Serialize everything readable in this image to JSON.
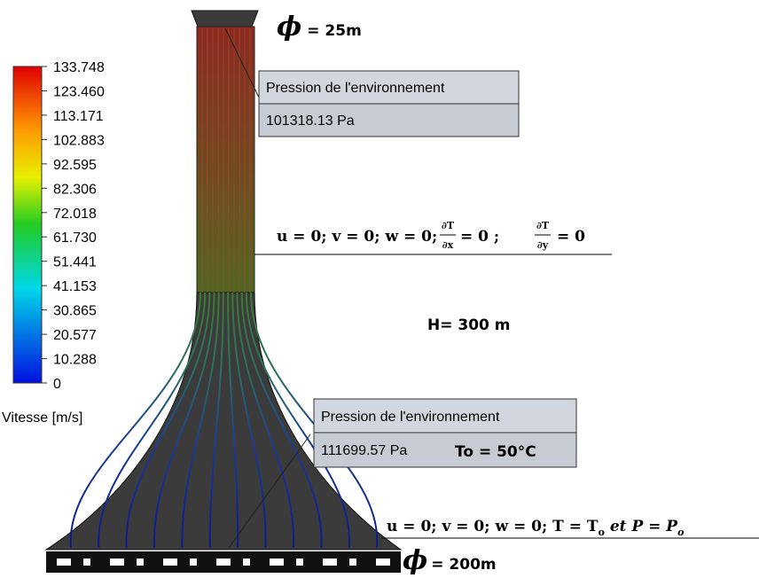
{
  "colorbar": {
    "ticks": [
      "133.748",
      "123.460",
      "113.171",
      "102.883",
      "92.595",
      "82.306",
      "72.018",
      "61.730",
      "51.441",
      "41.153",
      "30.865",
      "20.577",
      "10.288",
      "0"
    ],
    "label": "Vitesse [m/s]"
  },
  "top_diameter": {
    "symbol": "ϕ",
    "label": "= 25m"
  },
  "outlet_box": {
    "title": "Pression de l'environnement",
    "value": "101318.13 Pa"
  },
  "wall_condition": {
    "prefix": "u = 0; v = 0; w = 0;",
    "frac1": {
      "num": "∂T",
      "den": "∂x"
    },
    "mid": "= 0 ;",
    "frac2": {
      "num": "∂T",
      "den": "∂y"
    },
    "suffix": "= 0"
  },
  "height": "H= 300 m",
  "inlet_box": {
    "title": "Pression de l'environnement",
    "value": "111699.57 Pa"
  },
  "inlet_temperature": "To = 50°C",
  "inlet_condition": {
    "part1": "u = 0; v = 0; w = 0; T = T",
    "sub1": "o",
    "part2": " et ",
    "part3": "P = P",
    "sub2": "o"
  },
  "base_diameter": {
    "symbol": "ϕ",
    "label": "= 200m"
  }
}
